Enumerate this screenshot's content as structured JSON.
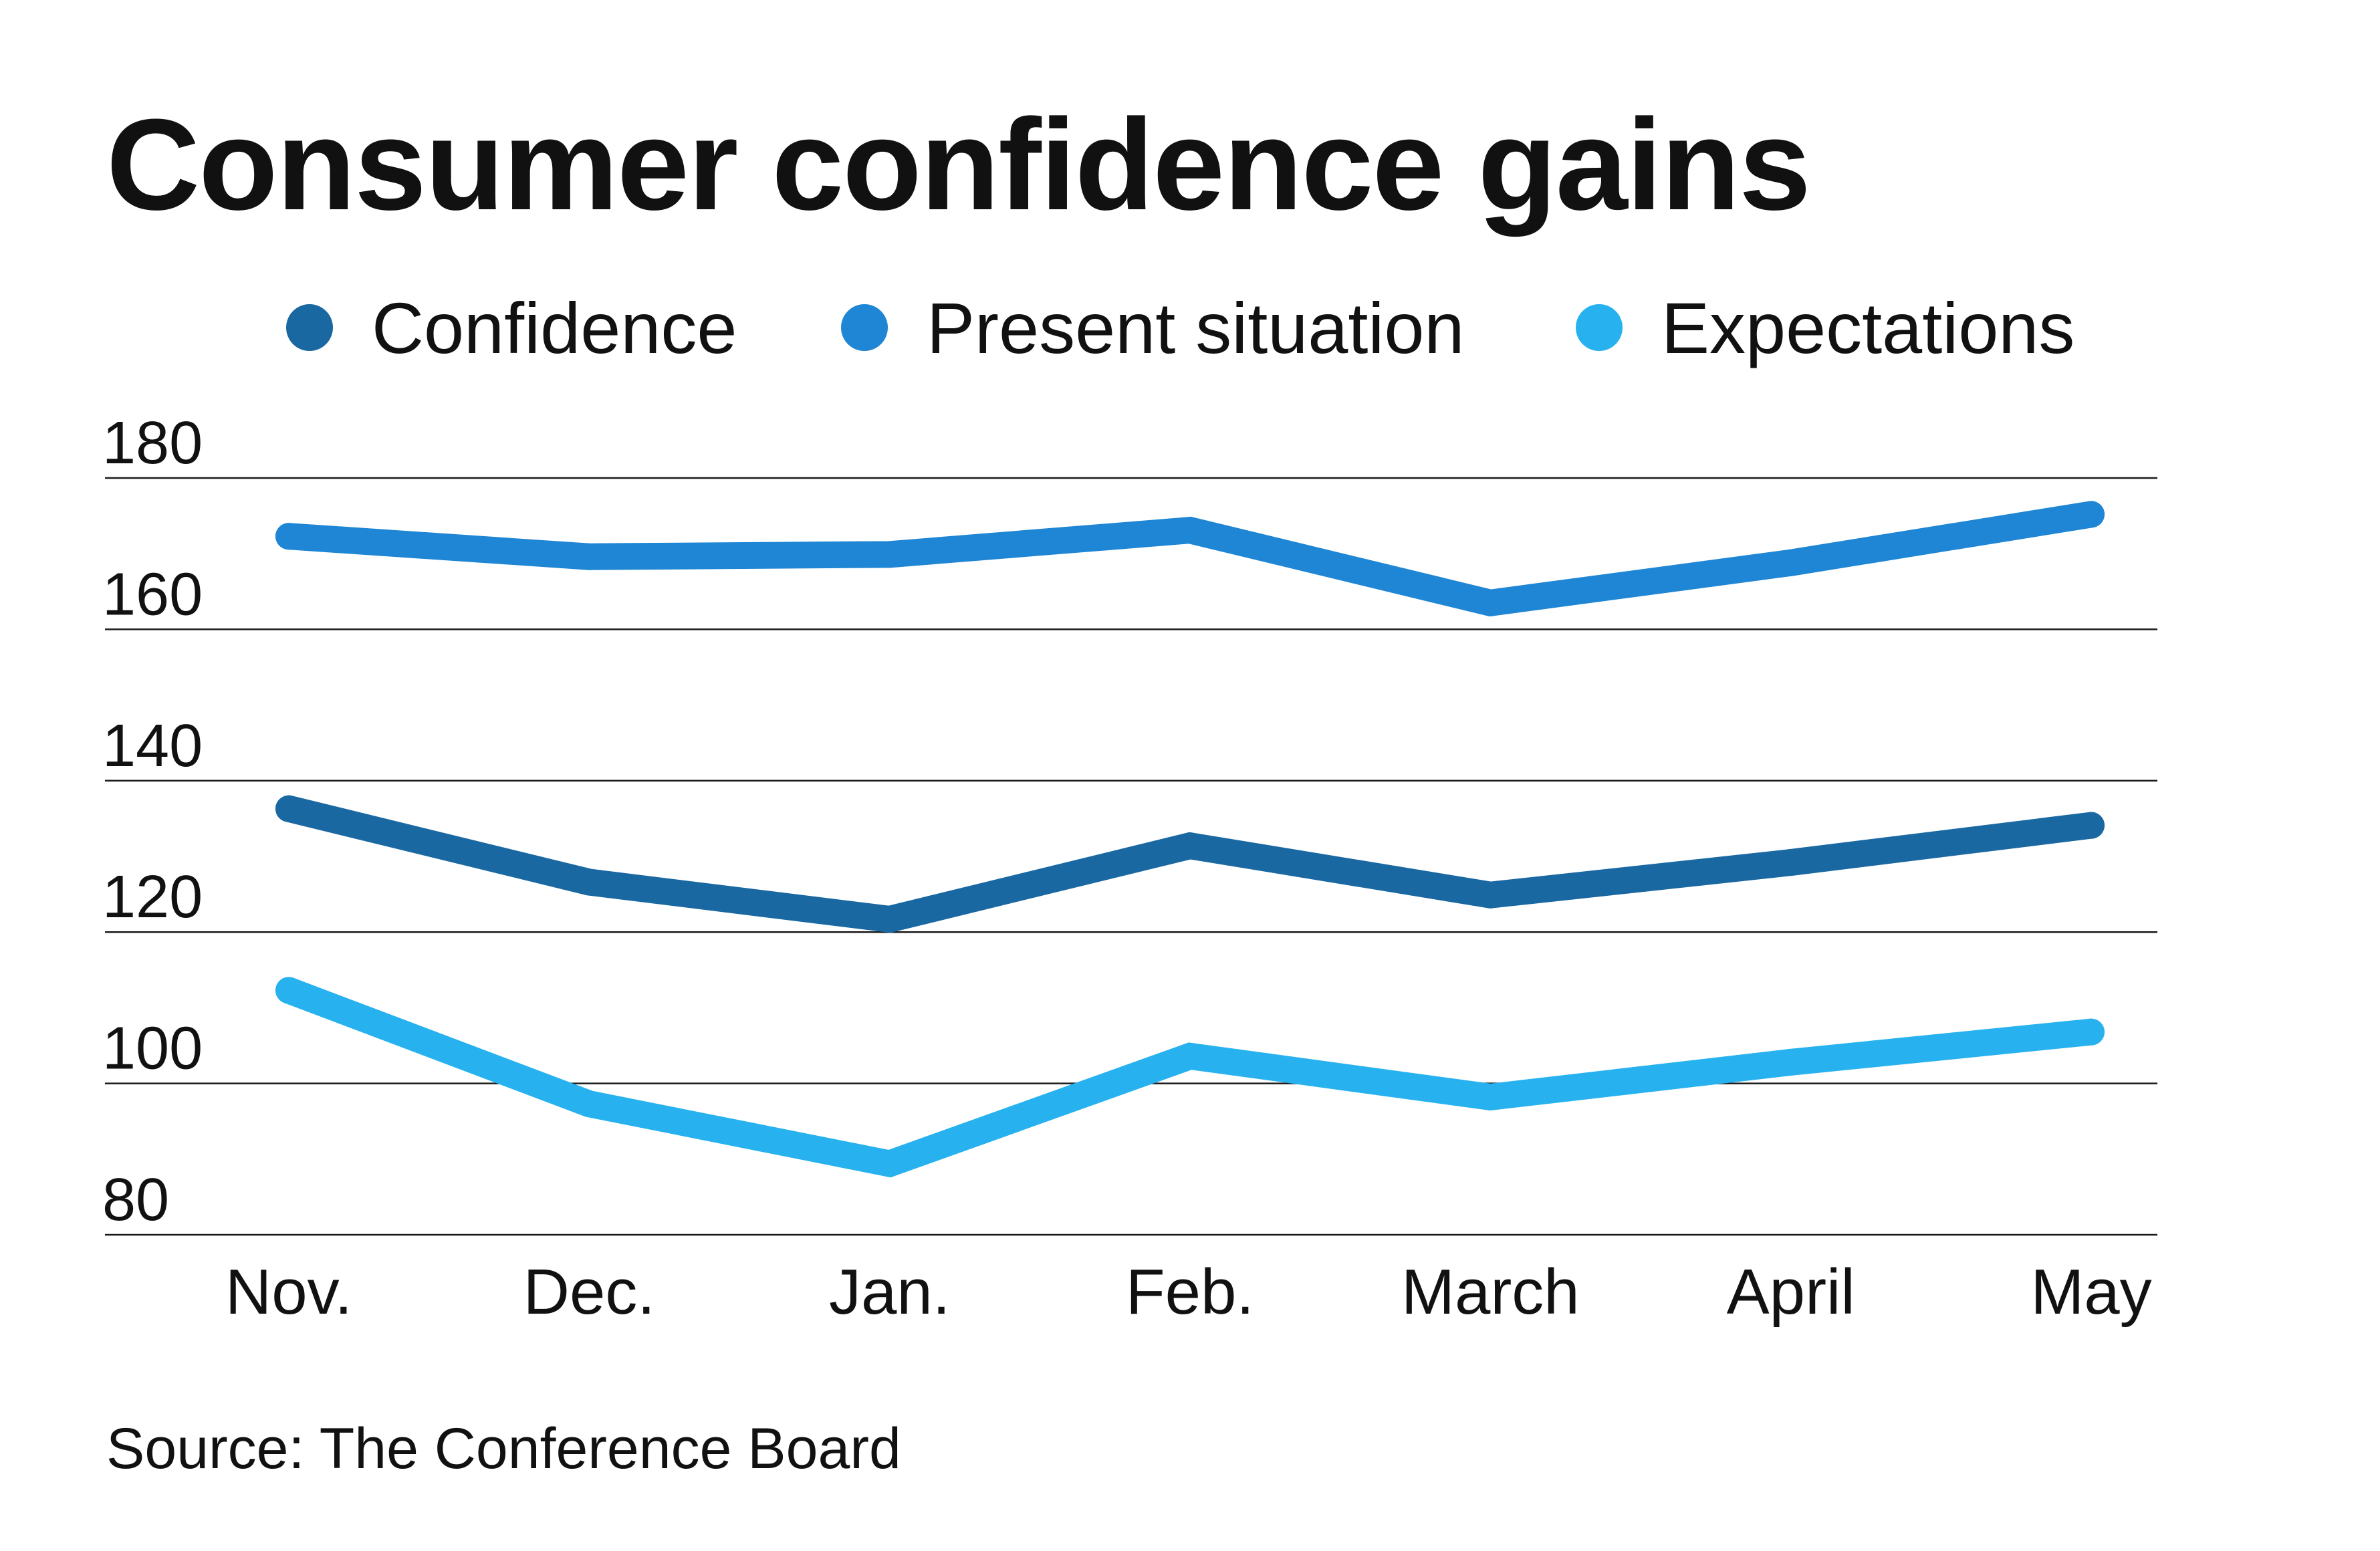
{
  "title": "Consumer confidence gains",
  "source": "Source: The Conference Board",
  "chart_data": {
    "type": "line",
    "title": "Consumer confidence gains",
    "categories": [
      "Nov.",
      "Dec.",
      "Jan.",
      "Feb.",
      "March",
      "April",
      "May"
    ],
    "series": [
      {
        "name": "Confidence",
        "color": "#1a68a2",
        "values": [
          136.3,
          126.6,
          121.7,
          131.4,
          124.9,
          129.2,
          134.1
        ]
      },
      {
        "name": "Present situation",
        "color": "#1e86d4",
        "values": [
          172.3,
          169.6,
          169.9,
          173.1,
          163.5,
          168.8,
          175.2
        ]
      },
      {
        "name": "Expectations",
        "color": "#27b2ef",
        "values": [
          112.3,
          97.3,
          89.4,
          103.6,
          98.2,
          102.8,
          106.8
        ]
      }
    ],
    "yticks": [
      180,
      160,
      140,
      120,
      100,
      80
    ],
    "ylim": [
      80,
      180
    ],
    "grid": true,
    "legend": "top"
  }
}
